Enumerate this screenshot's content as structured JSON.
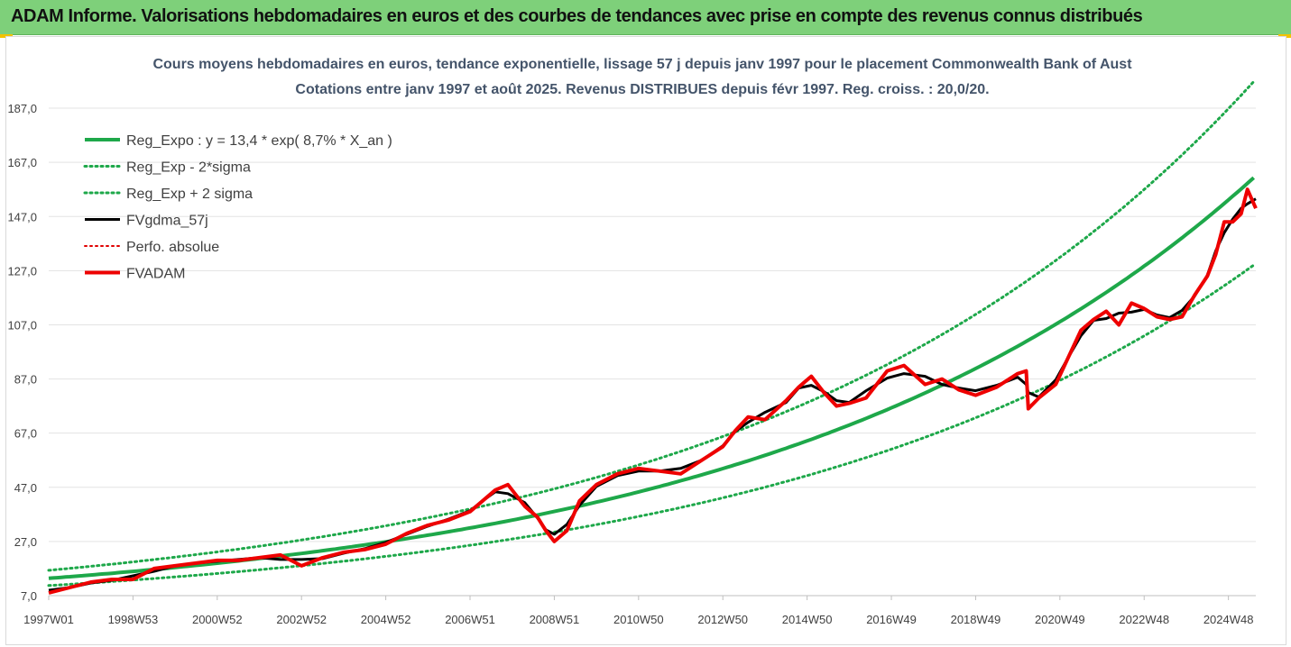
{
  "banner": {
    "title": "ADAM Informe. Valorisations hebdomadaires en euros et des courbes de tendances avec prise en compte des revenus connus distribués",
    "color": "#7ed07a"
  },
  "chart_data": {
    "type": "line",
    "title": "Cours moyens hebdomadaires en euros, tendance exponentielle, lissage 57 j depuis janv 1997 pour le placement Commonwealth Bank of Aust",
    "subtitle": "Cotations entre janv 1997 et août 2025. Revenus DISTRIBUES depuis févr 1997. Reg. croiss. : 20,0/20.",
    "xlabel": "",
    "ylabel": "",
    "ylim": [
      7.0,
      197.0
    ],
    "y_ticks": [
      "187,0",
      "167,0",
      "147,0",
      "127,0",
      "107,0",
      "87,0",
      "67,0",
      "47,0",
      "27,0",
      "7,0"
    ],
    "y_tick_values": [
      187,
      167,
      147,
      127,
      107,
      87,
      67,
      47,
      27,
      7
    ],
    "x_range": [
      1997.0,
      2025.65
    ],
    "x_ticks": [
      {
        "label": "1997W01",
        "year": 1997.0
      },
      {
        "label": "1998W53",
        "year": 1999.0
      },
      {
        "label": "2000W52",
        "year": 2001.0
      },
      {
        "label": "2002W52",
        "year": 2003.0
      },
      {
        "label": "2004W52",
        "year": 2005.0
      },
      {
        "label": "2006W51",
        "year": 2007.0
      },
      {
        "label": "2008W51",
        "year": 2009.0
      },
      {
        "label": "2010W50",
        "year": 2011.0
      },
      {
        "label": "2012W50",
        "year": 2013.0
      },
      {
        "label": "2014W50",
        "year": 2015.0
      },
      {
        "label": "2016W49",
        "year": 2017.0
      },
      {
        "label": "2018W49",
        "year": 2019.0
      },
      {
        "label": "2020W49",
        "year": 2021.0
      },
      {
        "label": "2022W48",
        "year": 2023.0
      },
      {
        "label": "2024W48",
        "year": 2025.0
      }
    ],
    "grid": true,
    "legend_position": "top-left",
    "regression": {
      "a": 13.4,
      "rate": 0.087,
      "sigma_factor_low": 0.8,
      "sigma_factor_high": 1.22,
      "cap": 197.0
    },
    "series": [
      {
        "name": "Reg_Expo : y = 13,4 * exp( 8,7% *  X_an )",
        "color": "#1ea84a",
        "style": "solid",
        "width": 4
      },
      {
        "name": "Reg_Exp - 2*sigma",
        "color": "#1ea84a",
        "style": "dotted",
        "width": 3
      },
      {
        "name": "Reg_Exp + 2 sigma",
        "color": "#1ea84a",
        "style": "dotted",
        "width": 3
      },
      {
        "name": "FVgdma_57j",
        "color": "#000000",
        "style": "solid",
        "width": 3
      },
      {
        "name": "Perfo. absolue",
        "color": "#e00000",
        "style": "dotted",
        "width": 2
      },
      {
        "name": "FVADAM",
        "color": "#ee0000",
        "style": "solid",
        "width": 4,
        "x": [
          1997.0,
          1997.5,
          1998.0,
          1998.5,
          1999.0,
          1999.5,
          2000.0,
          2000.5,
          2001.0,
          2001.5,
          2002.0,
          2002.5,
          2003.0,
          2003.5,
          2004.0,
          2004.5,
          2005.0,
          2005.5,
          2006.0,
          2006.5,
          2007.0,
          2007.3,
          2007.6,
          2007.9,
          2008.3,
          2008.6,
          2008.8,
          2009.0,
          2009.3,
          2009.6,
          2010.0,
          2010.5,
          2011.0,
          2011.5,
          2012.0,
          2012.5,
          2013.0,
          2013.3,
          2013.6,
          2014.0,
          2014.5,
          2014.8,
          2015.1,
          2015.4,
          2015.7,
          2016.0,
          2016.4,
          2016.9,
          2017.3,
          2017.8,
          2018.2,
          2018.6,
          2019.0,
          2019.5,
          2020.0,
          2020.2,
          2020.25,
          2020.5,
          2020.9,
          2021.2,
          2021.5,
          2021.8,
          2022.1,
          2022.4,
          2022.7,
          2023.0,
          2023.3,
          2023.6,
          2023.9,
          2024.2,
          2024.5,
          2024.7,
          2024.9,
          2025.1,
          2025.3,
          2025.45,
          2025.65
        ],
        "values": [
          8,
          10,
          12,
          13,
          13,
          17,
          18,
          19,
          20,
          20,
          21,
          22,
          18,
          21,
          23,
          24,
          26,
          30,
          33,
          35,
          38,
          42,
          46,
          48,
          40,
          36,
          31,
          27,
          31,
          42,
          48,
          52,
          54,
          53,
          52,
          57,
          62,
          68,
          73,
          72,
          79,
          84,
          88,
          82,
          77,
          78,
          80,
          90,
          92,
          85,
          87,
          83,
          81,
          84,
          89,
          90,
          76,
          80,
          85,
          95,
          105,
          109,
          112,
          107,
          115,
          113,
          110,
          109,
          110,
          118,
          125,
          133,
          145,
          145,
          148,
          157,
          150
        ]
      }
    ]
  }
}
